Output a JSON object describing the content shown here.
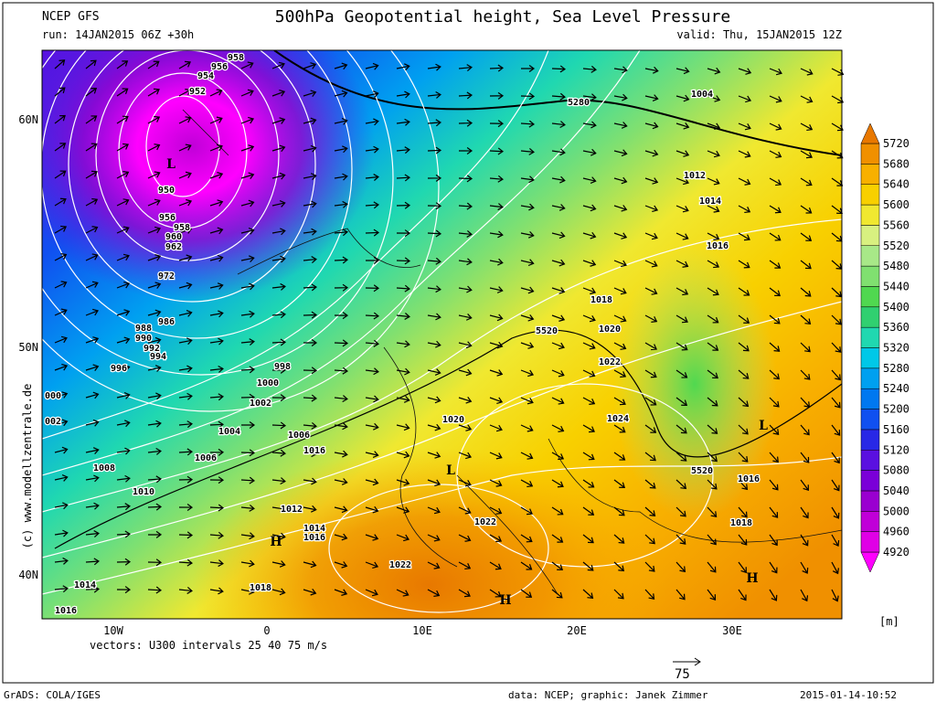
{
  "header": {
    "model": "NCEP GFS",
    "title": "500hPa Geopotential height, Sea Level Pressure",
    "run": "run: 14JAN2015 06Z +30h",
    "valid": "valid: Thu, 15JAN2015 12Z"
  },
  "map": {
    "lat_labels": [
      "60N",
      "50N",
      "40N"
    ],
    "lon_labels": [
      "10W",
      "0",
      "10E",
      "20E",
      "30E"
    ],
    "contour_labels": [
      "958",
      "956",
      "954",
      "952",
      "950",
      "956",
      "958",
      "960",
      "962",
      "972",
      "986",
      "988",
      "990",
      "992",
      "994",
      "996",
      "998",
      "1000",
      "000",
      "1002",
      "002",
      "1004",
      "1006",
      "1016",
      "1006",
      "1008",
      "1010",
      "1012",
      "1014",
      "1016",
      "1014",
      "1018",
      "1016",
      "1022",
      "1022",
      "1020",
      "1024",
      "1022",
      "1020",
      "1018",
      "1016",
      "1014",
      "1012",
      "1004",
      "1016",
      "1018",
      "5280",
      "5520",
      "5520"
    ],
    "pressure_centers": [
      "L",
      "L",
      "H",
      "H",
      "H",
      "L"
    ],
    "vectors_note": "vectors: U300 intervals 25 40 75 m/s",
    "vector_scale": "75",
    "watermark": "(c) www.modellzentrale.de"
  },
  "colorbar": {
    "levels": [
      4920,
      4960,
      5000,
      5040,
      5080,
      5120,
      5160,
      5200,
      5240,
      5280,
      5320,
      5360,
      5400,
      5440,
      5480,
      5520,
      5560,
      5600,
      5640,
      5680,
      5720
    ],
    "colors": [
      "#ff00ff",
      "#e000e6",
      "#c000d8",
      "#9a00d0",
      "#7a00d8",
      "#5a10e0",
      "#2828e6",
      "#1050f0",
      "#0078f0",
      "#00a0f0",
      "#00c8e8",
      "#20d8b0",
      "#30d070",
      "#50d850",
      "#80e070",
      "#a8e888",
      "#d8f080",
      "#f0e830",
      "#f8d000",
      "#f8b000",
      "#f09000",
      "#e87800"
    ],
    "unit": "[m]"
  },
  "footer": {
    "software": "GrADS: COLA/IGES",
    "credit": "data: NCEP; graphic: Janek Zimmer",
    "timestamp": "2015-01-14-10:52"
  }
}
